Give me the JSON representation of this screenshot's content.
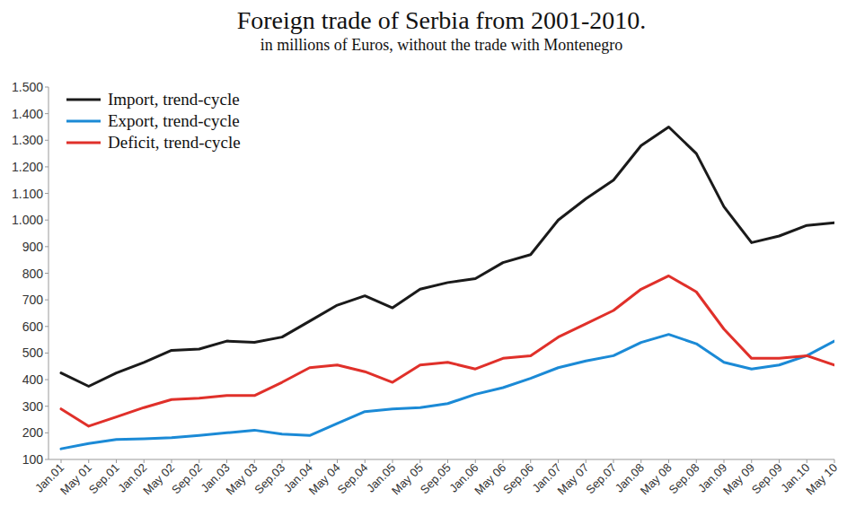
{
  "chart_data": {
    "type": "line",
    "title": "Foreign trade of Serbia from 2001-2010.",
    "subtitle": "in millions of Euros, without the trade with Montenegro",
    "categories": [
      "Jan.01",
      "May 01",
      "Sep.01",
      "Jan.02",
      "May 02",
      "Sep.02",
      "Jan.03",
      "May 03",
      "Sep.03",
      "Jan.04",
      "May 04",
      "Sep.04",
      "Jan.05",
      "May 05",
      "Sep.05",
      "Jan.06",
      "May 06",
      "Sep.06",
      "Jan.07",
      "May 07",
      "Sep.07",
      "Jan.08",
      "May 08",
      "Sep.08",
      "Jan.09",
      "May 09",
      "Sep.09",
      "Jan.10",
      "May 10"
    ],
    "series": [
      {
        "name": "Import, trend-cycle",
        "color": "#1a1a1a",
        "values": [
          425,
          375,
          425,
          465,
          510,
          515,
          545,
          540,
          560,
          620,
          680,
          715,
          670,
          740,
          765,
          780,
          840,
          870,
          1000,
          1080,
          1150,
          1280,
          1350,
          1250,
          1050,
          915,
          940,
          980,
          990
        ]
      },
      {
        "name": "Export, trend-cycle",
        "color": "#1b8ad6",
        "values": [
          140,
          160,
          175,
          178,
          182,
          190,
          200,
          210,
          195,
          190,
          235,
          280,
          290,
          295,
          310,
          345,
          370,
          405,
          445,
          470,
          490,
          540,
          570,
          535,
          465,
          440,
          455,
          490,
          545
        ]
      },
      {
        "name": "Deficit, trend-cycle",
        "color": "#e0302a",
        "values": [
          290,
          225,
          260,
          295,
          325,
          330,
          340,
          340,
          390,
          445,
          455,
          430,
          390,
          455,
          465,
          440,
          480,
          490,
          560,
          610,
          660,
          740,
          790,
          730,
          590,
          480,
          480,
          490,
          455
        ]
      }
    ],
    "ylim": [
      100,
      1500
    ],
    "yticks": [
      100,
      200,
      300,
      400,
      500,
      600,
      700,
      800,
      900,
      {
        "value": 1000,
        "label": "1.000"
      },
      {
        "value": 1100,
        "label": "1.100"
      },
      {
        "value": 1200,
        "label": "1.200"
      },
      {
        "value": 1300,
        "label": "1.300"
      },
      {
        "value": 1400,
        "label": "1.400"
      },
      {
        "value": 1500,
        "label": "1.500"
      }
    ],
    "grid": false,
    "legend": "upper left"
  }
}
